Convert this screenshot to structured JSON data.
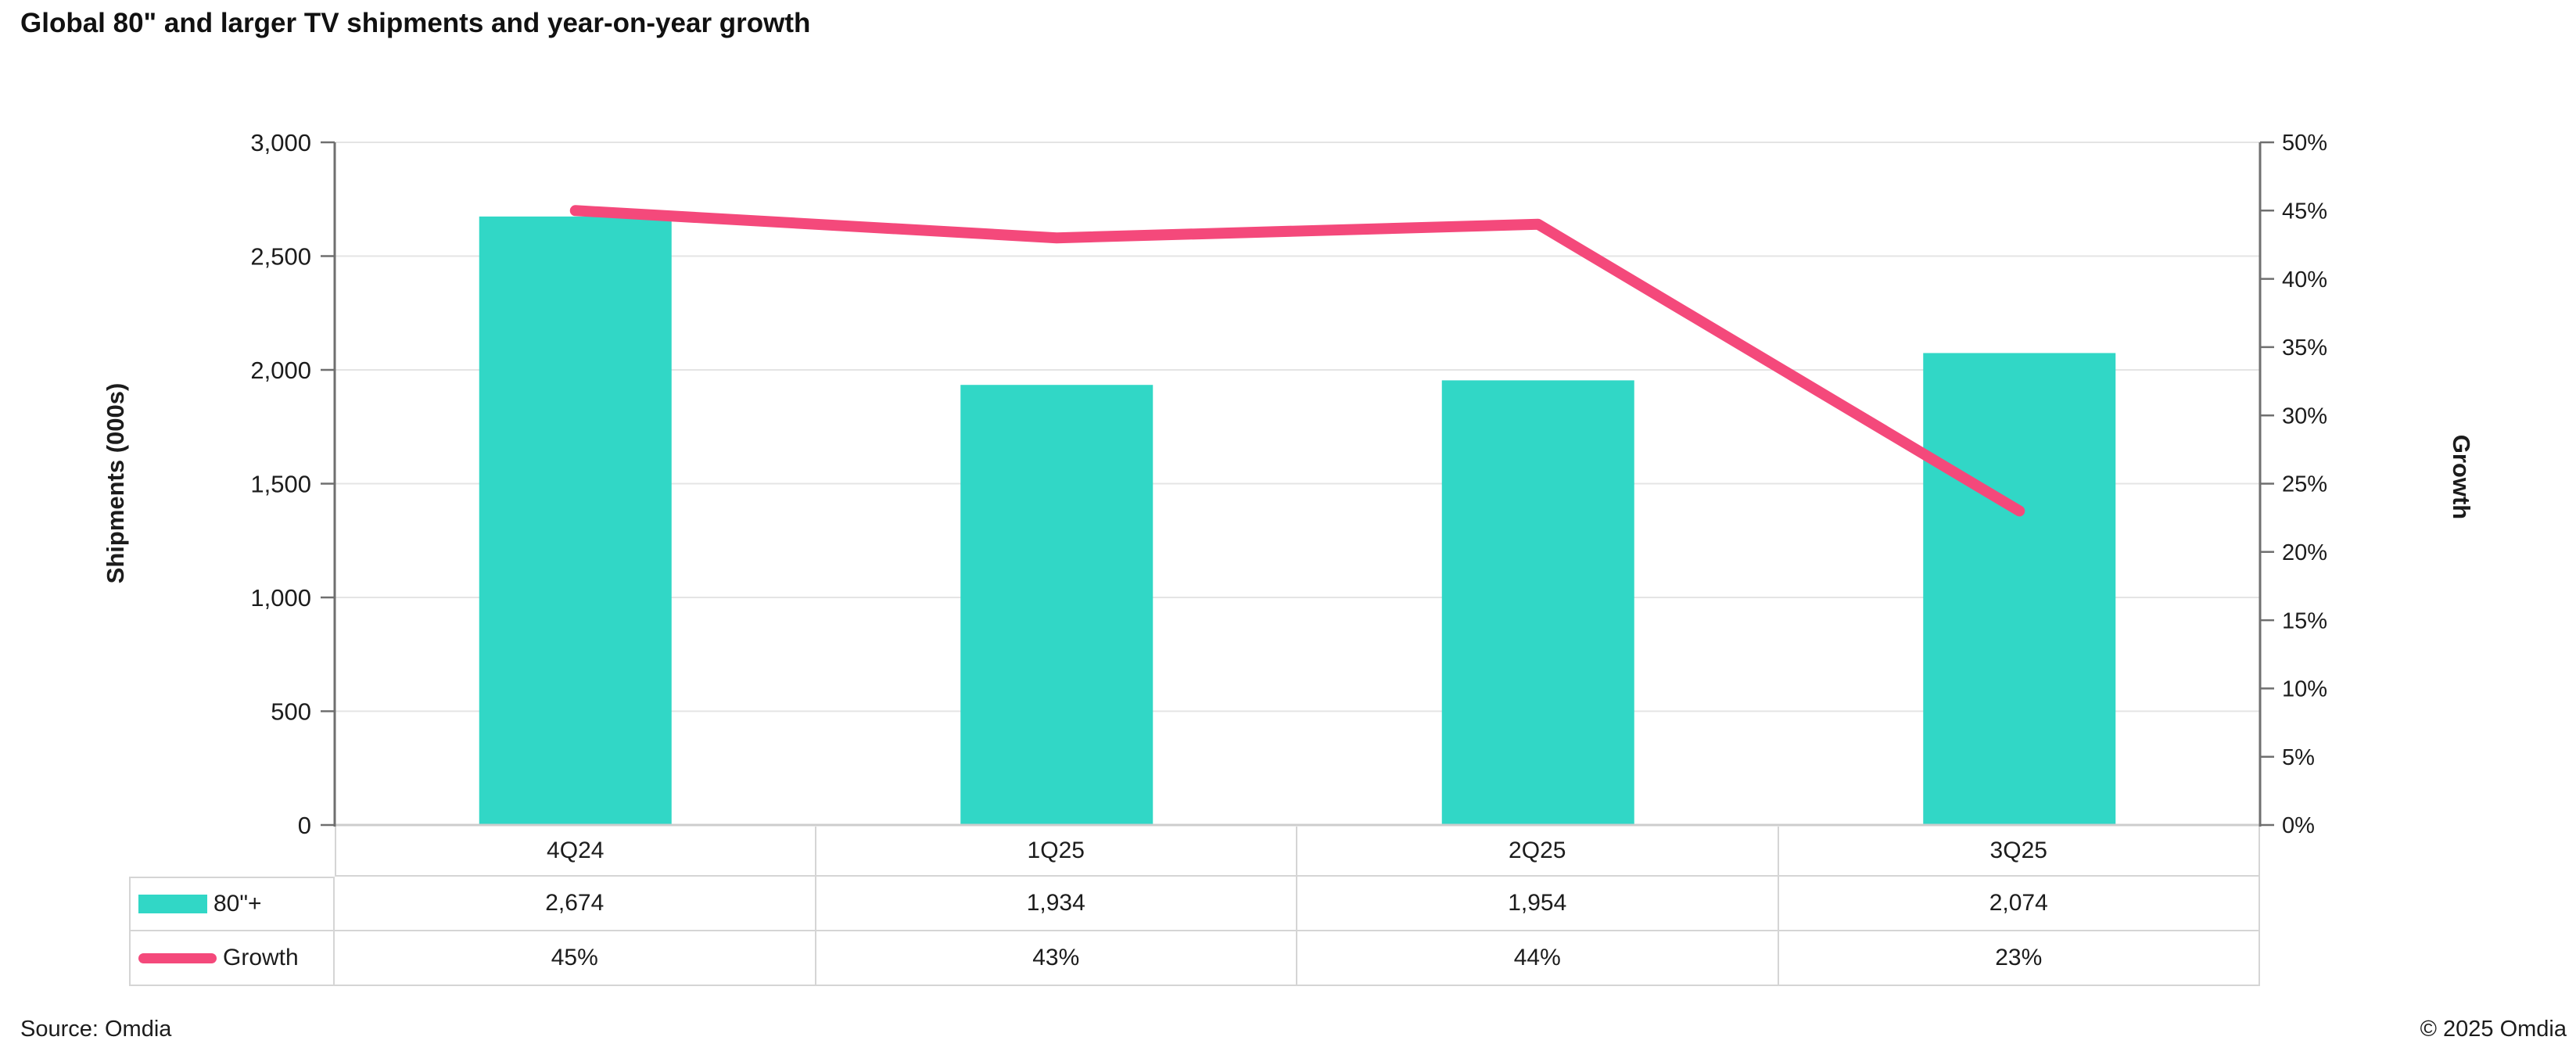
{
  "title": "Global 80\" and larger TV shipments and year-on-year growth",
  "footer": {
    "source": "Source: Omdia",
    "copyright": "© 2025 Omdia"
  },
  "colors": {
    "bar": "#31d7c6",
    "line": "#f4497b",
    "axis_line": "#6f6f6f",
    "gridline": "#e4e4e4",
    "category_axis": "#cdcdcd",
    "table_border": "#d5d5d5",
    "text": "#1c1c1c"
  },
  "chart_data": {
    "type": "bar",
    "subtype": "combo-bar-line",
    "categories": [
      "4Q24",
      "1Q25",
      "2Q25",
      "3Q25"
    ],
    "series": [
      {
        "name": "80\"+",
        "render": "bar",
        "axis": "left",
        "values": [
          2674,
          1934,
          1954,
          2074
        ],
        "value_labels": [
          "2,674",
          "1,934",
          "1,954",
          "2,074"
        ],
        "color": "#31d7c6"
      },
      {
        "name": "Growth",
        "render": "line",
        "axis": "right",
        "values": [
          45,
          43,
          44,
          23
        ],
        "value_labels": [
          "45%",
          "43%",
          "44%",
          "23%"
        ],
        "color": "#f4497b"
      }
    ],
    "left_axis": {
      "title": "Shipments (000s)",
      "min": 0,
      "max": 3000,
      "step": 500,
      "tick_labels_top_to_bottom": [
        "3,000",
        "2,500",
        "2,000",
        "1,500",
        "1,000",
        "500",
        "0"
      ]
    },
    "right_axis": {
      "title": "Growth",
      "min": 0,
      "max": 50,
      "step": 5,
      "tick_labels_top_to_bottom": [
        "50%",
        "45%",
        "40%",
        "35%",
        "30%",
        "25%",
        "20%",
        "15%",
        "10%",
        "5%",
        "0%"
      ]
    },
    "grid": true,
    "legend_position": "table-left"
  }
}
